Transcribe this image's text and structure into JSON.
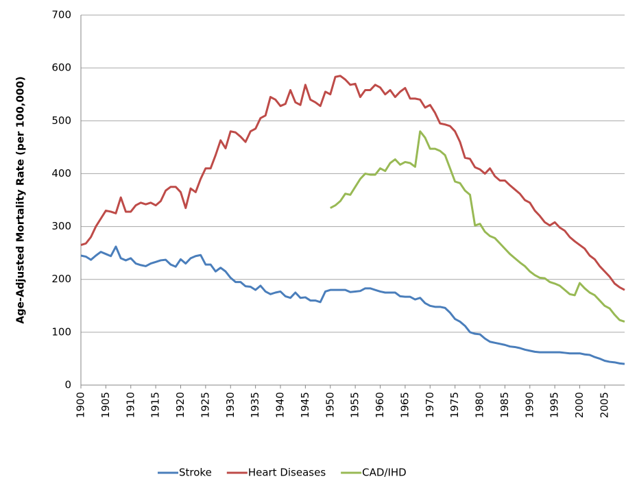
{
  "chart_data": {
    "type": "line",
    "y_label": "Age-Adjusted Mortality Rate (per 100,000)",
    "x": [
      1900,
      1901,
      1902,
      1903,
      1904,
      1905,
      1906,
      1907,
      1908,
      1909,
      1910,
      1911,
      1912,
      1913,
      1914,
      1915,
      1916,
      1917,
      1918,
      1919,
      1920,
      1921,
      1922,
      1923,
      1924,
      1925,
      1926,
      1927,
      1928,
      1929,
      1930,
      1931,
      1932,
      1933,
      1934,
      1935,
      1936,
      1937,
      1938,
      1939,
      1940,
      1941,
      1942,
      1943,
      1944,
      1945,
      1946,
      1947,
      1948,
      1949,
      1950,
      1951,
      1952,
      1953,
      1954,
      1955,
      1956,
      1957,
      1958,
      1959,
      1960,
      1961,
      1962,
      1963,
      1964,
      1965,
      1966,
      1967,
      1968,
      1969,
      1970,
      1971,
      1972,
      1973,
      1974,
      1975,
      1976,
      1977,
      1978,
      1979,
      1980,
      1981,
      1982,
      1983,
      1984,
      1985,
      1986,
      1987,
      1988,
      1989,
      1990,
      1991,
      1992,
      1993,
      1994,
      1995,
      1996,
      1997,
      1998,
      1999,
      2000,
      2001,
      2002,
      2003,
      2004,
      2005,
      2006,
      2007,
      2008,
      2009
    ],
    "series": [
      {
        "name": "Stroke",
        "color": "#4a7ebb",
        "values": [
          245,
          243,
          237,
          245,
          252,
          248,
          244,
          262,
          240,
          236,
          240,
          230,
          227,
          225,
          230,
          233,
          236,
          237,
          228,
          224,
          238,
          230,
          240,
          244,
          246,
          228,
          228,
          215,
          222,
          215,
          203,
          195,
          195,
          187,
          186,
          180,
          188,
          177,
          172,
          175,
          177,
          168,
          165,
          175,
          165,
          166,
          160,
          160,
          157,
          177,
          180,
          180,
          180,
          180,
          176,
          177,
          178,
          183,
          183,
          180,
          177,
          175,
          175,
          175,
          168,
          167,
          167,
          162,
          165,
          155,
          150,
          148,
          148,
          146,
          137,
          125,
          120,
          112,
          100,
          97,
          96,
          88,
          82,
          80,
          78,
          76,
          73,
          72,
          70,
          67,
          65,
          63,
          62,
          62,
          62,
          62,
          62,
          61,
          60,
          60,
          60,
          58,
          57,
          53,
          50,
          46,
          44,
          43,
          41,
          40
        ]
      },
      {
        "name": "Heart Diseases",
        "color": "#be4b48",
        "values": [
          265,
          268,
          280,
          300,
          315,
          330,
          328,
          325,
          355,
          328,
          328,
          340,
          345,
          342,
          345,
          340,
          348,
          368,
          375,
          375,
          365,
          335,
          372,
          365,
          390,
          410,
          410,
          435,
          463,
          448,
          480,
          478,
          470,
          460,
          480,
          485,
          505,
          510,
          545,
          540,
          528,
          532,
          558,
          535,
          530,
          568,
          540,
          535,
          528,
          555,
          550,
          583,
          585,
          578,
          568,
          570,
          545,
          558,
          558,
          568,
          563,
          550,
          558,
          545,
          555,
          562,
          542,
          542,
          540,
          525,
          530,
          515,
          495,
          493,
          490,
          480,
          460,
          430,
          428,
          412,
          408,
          400,
          410,
          395,
          387,
          387,
          378,
          370,
          362,
          350,
          345,
          330,
          320,
          308,
          302,
          308,
          298,
          292,
          280,
          272,
          265,
          258,
          245,
          238,
          225,
          215,
          205,
          192,
          185,
          180
        ]
      },
      {
        "name": "CAD/IHD",
        "color": "#98b954",
        "values": [
          null,
          null,
          null,
          null,
          null,
          null,
          null,
          null,
          null,
          null,
          null,
          null,
          null,
          null,
          null,
          null,
          null,
          null,
          null,
          null,
          null,
          null,
          null,
          null,
          null,
          null,
          null,
          null,
          null,
          null,
          null,
          null,
          null,
          null,
          null,
          null,
          null,
          null,
          null,
          null,
          null,
          null,
          null,
          null,
          null,
          null,
          null,
          null,
          null,
          null,
          335,
          340,
          348,
          362,
          360,
          375,
          390,
          400,
          398,
          398,
          410,
          405,
          420,
          427,
          417,
          422,
          420,
          413,
          480,
          468,
          447,
          447,
          443,
          435,
          410,
          385,
          382,
          368,
          360,
          302,
          305,
          290,
          282,
          278,
          268,
          258,
          248,
          240,
          232,
          225,
          215,
          208,
          203,
          202,
          195,
          192,
          188,
          180,
          172,
          170,
          193,
          183,
          175,
          170,
          160,
          150,
          145,
          133,
          123,
          120
        ]
      }
    ],
    "xlim": [
      1900,
      2009
    ],
    "xticks": [
      1900,
      1905,
      1910,
      1915,
      1920,
      1925,
      1930,
      1935,
      1940,
      1945,
      1950,
      1955,
      1960,
      1965,
      1970,
      1975,
      1980,
      1985,
      1990,
      1995,
      2000,
      2005
    ],
    "ylim": [
      0,
      700
    ],
    "yticks": [
      0,
      100,
      200,
      300,
      400,
      500,
      600,
      700
    ],
    "grid": true,
    "legend": "bottom"
  }
}
